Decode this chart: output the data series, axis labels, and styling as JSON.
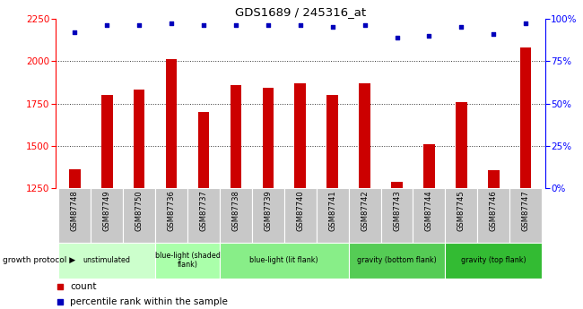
{
  "title": "GDS1689 / 245316_at",
  "samples": [
    "GSM87748",
    "GSM87749",
    "GSM87750",
    "GSM87736",
    "GSM87737",
    "GSM87738",
    "GSM87739",
    "GSM87740",
    "GSM87741",
    "GSM87742",
    "GSM87743",
    "GSM87744",
    "GSM87745",
    "GSM87746",
    "GSM87747"
  ],
  "counts": [
    1365,
    1800,
    1830,
    2010,
    1700,
    1860,
    1840,
    1870,
    1800,
    1870,
    1290,
    1510,
    1760,
    1360,
    2080
  ],
  "percentile_ranks": [
    92,
    96,
    96,
    97,
    96,
    96,
    96,
    96,
    95,
    96,
    89,
    90,
    95,
    91,
    97
  ],
  "bar_color": "#cc0000",
  "dot_color": "#0000bb",
  "ylim_left": [
    1250,
    2250
  ],
  "ylim_right": [
    0,
    100
  ],
  "yticks_left": [
    1250,
    1500,
    1750,
    2000,
    2250
  ],
  "yticks_right": [
    0,
    25,
    50,
    75,
    100
  ],
  "ylabel_right_labels": [
    "0%",
    "25%",
    "50%",
    "75%",
    "100%"
  ],
  "groups": [
    {
      "label": "unstimulated",
      "start": 0,
      "end": 3,
      "color": "#ccffcc"
    },
    {
      "label": "blue-light (shaded\nflank)",
      "start": 3,
      "end": 5,
      "color": "#aaffaa"
    },
    {
      "label": "blue-light (lit flank)",
      "start": 5,
      "end": 9,
      "color": "#88ee88"
    },
    {
      "label": "gravity (bottom flank)",
      "start": 9,
      "end": 12,
      "color": "#44cc44"
    },
    {
      "label": "gravity (top flank)",
      "start": 12,
      "end": 15,
      "color": "#22bb22"
    }
  ],
  "group_label_prefix": "growth protocol",
  "legend_count_label": "count",
  "legend_pct_label": "percentile rank within the sample",
  "background_color": "#ffffff",
  "bar_width": 0.35,
  "sample_label_bg": "#c8c8c8",
  "grid_color": "#333333",
  "grid_style": "dotted",
  "grid_linewidth": 0.7
}
